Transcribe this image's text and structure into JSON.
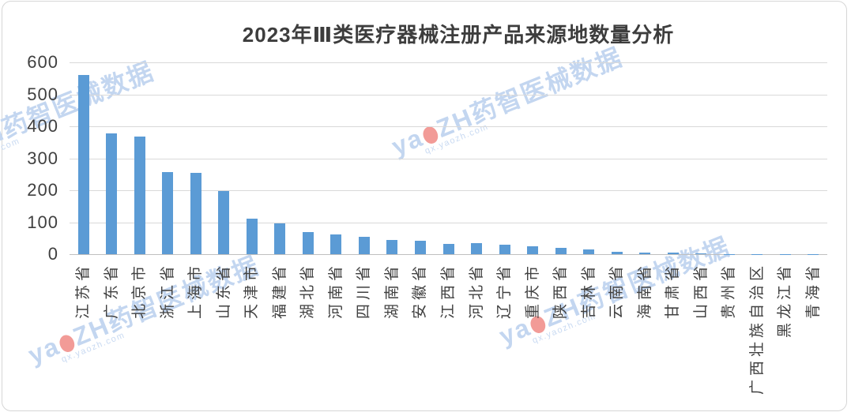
{
  "title": "2023年Ⅲ类医疗器械注册产品来源地数量分析",
  "watermark": {
    "brand_prefix": "ya",
    "brand_o": "o",
    "brand_suffix": "ZH药智医械数据",
    "site": "qx.yaozh.com"
  },
  "colors": {
    "bar": "#5b9bd5",
    "text": "#404040",
    "gridline": "#d9d9d9",
    "axis_line": "#bfbfbf",
    "watermark": "#c3d6f0",
    "watermark_dot": "#f29b97"
  },
  "chart_data": {
    "type": "bar",
    "title": "2023年Ⅲ类医疗器械注册产品来源地数量分析",
    "categories": [
      "江苏省",
      "广东省",
      "北京市",
      "浙江省",
      "上海市",
      "山东省",
      "天津市",
      "福建省",
      "湖北省",
      "河南省",
      "四川省",
      "湖南省",
      "安徽省",
      "江西省",
      "河北省",
      "辽宁省",
      "重庆市",
      "陕西省",
      "吉林省",
      "云南省",
      "海南省",
      "甘肃省",
      "山西省",
      "贵州省",
      "广西壮族自治区",
      "黑龙江省",
      "青海省"
    ],
    "values": [
      560,
      378,
      369,
      256,
      254,
      197,
      110,
      96,
      70,
      62,
      55,
      44,
      42,
      33,
      34,
      30,
      24,
      20,
      15,
      7,
      6,
      5,
      2,
      1,
      1,
      1,
      1
    ],
    "xlabel": "",
    "ylabel": "",
    "ylim": [
      0,
      600
    ],
    "yticks": [
      0,
      100,
      200,
      300,
      400,
      500,
      600
    ],
    "grid": true,
    "legend": false,
    "bar_color": "#5b9bd5",
    "x_label_rotation": -90
  }
}
